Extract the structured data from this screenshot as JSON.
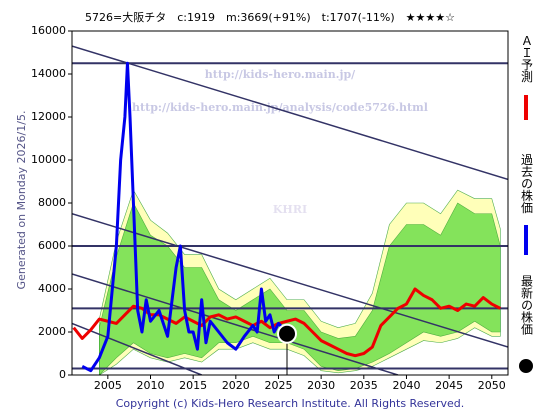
{
  "chart_data": {
    "type": "line",
    "title": "5726=大阪チタ　c:1919　m:3669(+91%)　t:1707(-11%)　★★★★☆",
    "side_label": "Generated on Monday 2026/1/5.",
    "footer": "Copyright (c) Kids-Hero Research Institute. All Rights Reserved.",
    "watermarks": [
      "http://kids-hero.main.jp/",
      "http://kids-hero.main.jp/analysis/code5726.html",
      "KHRI"
    ],
    "xlim": [
      2000.8,
      2051.9
    ],
    "xticks": [
      2005,
      2010,
      2015,
      2020,
      2025,
      2030,
      2035,
      2040,
      2045,
      2050
    ],
    "ylim": [
      0,
      16000
    ],
    "yticks": [
      0,
      2000,
      4000,
      6000,
      8000,
      10000,
      12000,
      14000,
      16000
    ],
    "bands": [
      {
        "color": "#ffffa8",
        "x": [
          2004,
          2006,
          2008,
          2010,
          2012,
          2014,
          2016,
          2018,
          2020,
          2022,
          2024,
          2026,
          2028,
          2030,
          2032,
          2034,
          2036,
          2038,
          2040,
          2042,
          2044,
          2046,
          2048,
          2050,
          2051
        ],
        "low": [
          0,
          500,
          1200,
          800,
          600,
          800,
          600,
          1200,
          1200,
          1500,
          1200,
          1200,
          900,
          200,
          100,
          200,
          400,
          800,
          1200,
          1600,
          1500,
          1700,
          2200,
          1800,
          1800
        ],
        "high": [
          2600,
          6200,
          8600,
          7200,
          6600,
          5600,
          5600,
          4000,
          3500,
          4000,
          4500,
          3500,
          3500,
          2500,
          2200,
          2400,
          3800,
          7000,
          8000,
          8000,
          7500,
          8600,
          8200,
          8200,
          6800
        ]
      },
      {
        "color": "#66dd44",
        "x": [
          2004,
          2006,
          2008,
          2010,
          2012,
          2014,
          2016,
          2018,
          2020,
          2022,
          2024,
          2026,
          2028,
          2030,
          2032,
          2034,
          2036,
          2038,
          2040,
          2042,
          2044,
          2046,
          2048,
          2050,
          2051
        ],
        "low": [
          0,
          800,
          1500,
          1000,
          800,
          1000,
          800,
          1500,
          1500,
          1800,
          1500,
          1500,
          1200,
          400,
          200,
          300,
          600,
          1000,
          1500,
          2000,
          1800,
          2000,
          2500,
          2000,
          2000
        ],
        "high": [
          2200,
          5500,
          8000,
          6500,
          6000,
          5000,
          5000,
          3500,
          3000,
          3500,
          4000,
          3000,
          3000,
          2000,
          1700,
          1800,
          3000,
          6000,
          7000,
          7000,
          6500,
          8000,
          7500,
          7500,
          6000
        ]
      }
    ],
    "hlines": {
      "color": "#333366",
      "values": [
        14500,
        6000,
        3100,
        300
      ]
    },
    "trend_lines": {
      "color": "#333366",
      "lines": [
        [
          2000.8,
          15300,
          2051.9,
          9100
        ],
        [
          2000.8,
          7500,
          2051.9,
          1300
        ],
        [
          2000.8,
          4700,
          2039,
          0
        ],
        [
          2000.8,
          2400,
          2016,
          0
        ]
      ]
    },
    "series": [
      {
        "name": "ＡＩ予測",
        "color": "#ee0000",
        "x": [
          2001,
          2002,
          2003,
          2004,
          2005,
          2006,
          2007,
          2008,
          2009,
          2010,
          2011,
          2012,
          2013,
          2014,
          2015,
          2016,
          2017,
          2018,
          2019,
          2020,
          2021,
          2022,
          2023,
          2024,
          2025,
          2026,
          2027,
          2028,
          2029,
          2030,
          2031,
          2032,
          2033,
          2034,
          2035,
          2036,
          2037,
          2038,
          2039,
          2040,
          2041,
          2042,
          2043,
          2044,
          2045,
          2046,
          2047,
          2048,
          2049,
          2050,
          2051
        ],
        "values": [
          2200,
          1700,
          2100,
          2600,
          2500,
          2400,
          2800,
          3200,
          3100,
          2800,
          2800,
          2600,
          2400,
          2700,
          2500,
          2300,
          2700,
          2800,
          2600,
          2700,
          2500,
          2300,
          2500,
          2200,
          2400,
          2500,
          2600,
          2400,
          2000,
          1600,
          1400,
          1200,
          1000,
          900,
          1000,
          1300,
          2300,
          2700,
          3100,
          3300,
          4000,
          3700,
          3500,
          3100,
          3200,
          3000,
          3300,
          3200,
          3600,
          3300,
          3100
        ]
      },
      {
        "name": "過去の株価",
        "color": "#0000ee",
        "x": [
          2002,
          2003,
          2004,
          2005,
          2006,
          2006.5,
          2007,
          2007.3,
          2007.6,
          2008,
          2008.5,
          2009,
          2009.5,
          2010,
          2011,
          2012,
          2013,
          2013.5,
          2014,
          2014.5,
          2015,
          2015.5,
          2016,
          2016.5,
          2017,
          2018,
          2019,
          2020,
          2021,
          2022,
          2022.5,
          2023,
          2023.5,
          2024,
          2024.5,
          2025,
          2025.5,
          2026
        ],
        "values": [
          400,
          200,
          800,
          1800,
          6000,
          10000,
          12000,
          14500,
          12000,
          8000,
          3000,
          2000,
          3500,
          2500,
          3000,
          1800,
          5000,
          6000,
          3000,
          2000,
          2000,
          1200,
          3500,
          1500,
          2500,
          2000,
          1500,
          1200,
          1800,
          2300,
          2000,
          4000,
          2500,
          2800,
          2000,
          2400,
          2200,
          1919
        ]
      }
    ],
    "current": {
      "name": "最新の株価",
      "color": "#000000",
      "x": 2026,
      "value": 1919
    }
  }
}
